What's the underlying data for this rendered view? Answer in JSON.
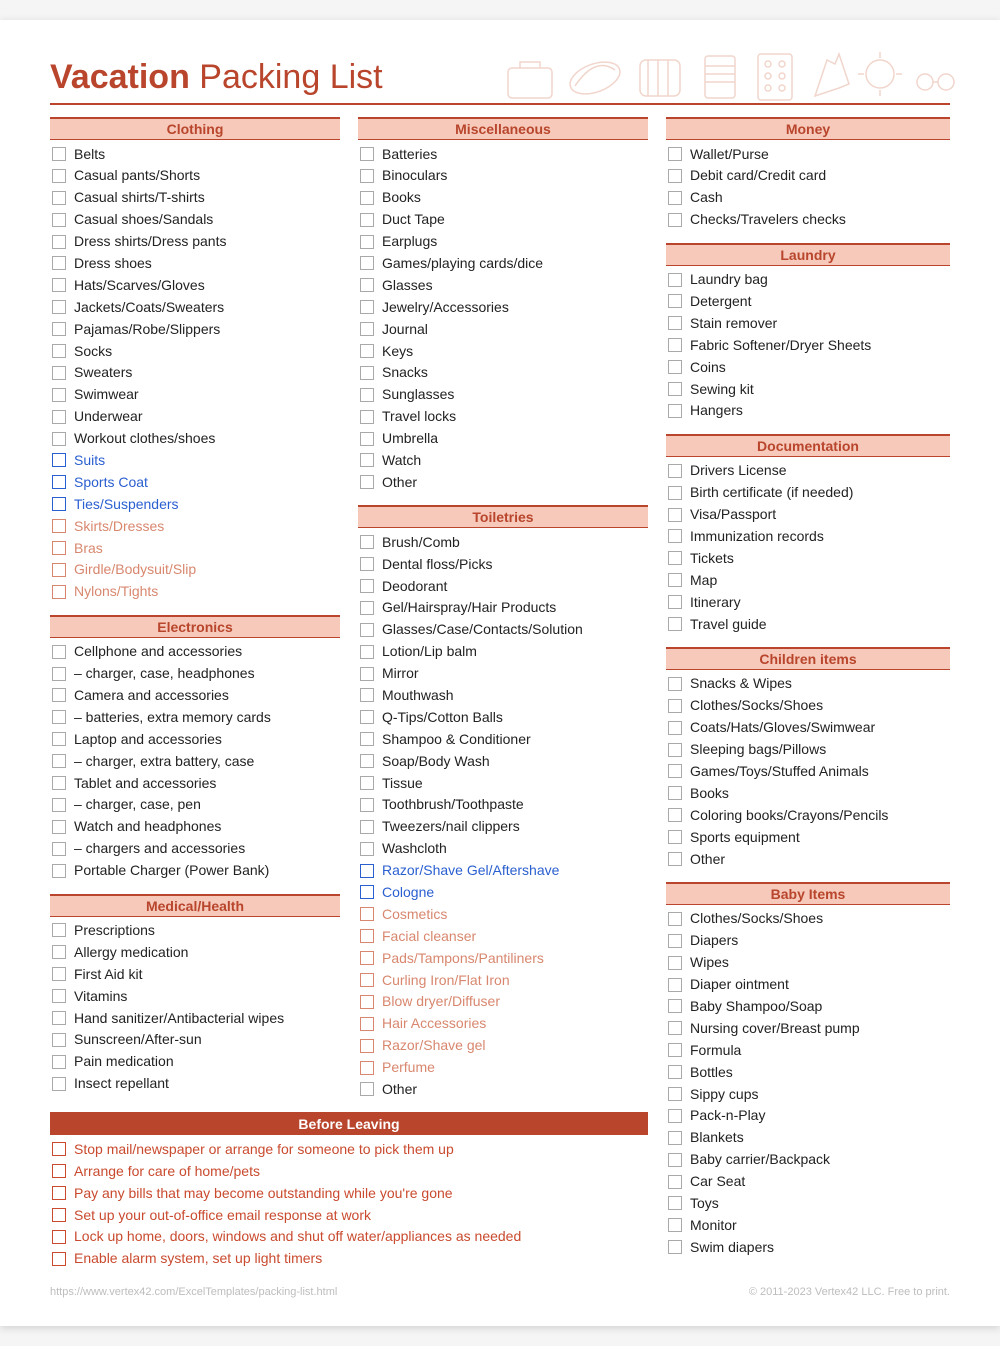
{
  "title_bold": "Vacation",
  "title_rest": " Packing List",
  "colors": {
    "accent": "#b8452c",
    "header_fill": "#f6c9ba",
    "blue": "#2a5fd0",
    "coral": "#d8876e",
    "red": "#c94a2e",
    "text": "#222222",
    "background": "#ffffff"
  },
  "footer_left": "https://www.vertex42.com/ExcelTemplates/packing-list.html",
  "footer_right": "© 2011-2023 Vertex42 LLC. Free to print.",
  "sections": {
    "clothing": {
      "title": "Clothing",
      "items": [
        {
          "label": "Belts"
        },
        {
          "label": "Casual pants/Shorts"
        },
        {
          "label": "Casual shirts/T-shirts"
        },
        {
          "label": "Casual shoes/Sandals"
        },
        {
          "label": "Dress shirts/Dress pants"
        },
        {
          "label": "Dress shoes"
        },
        {
          "label": "Hats/Scarves/Gloves"
        },
        {
          "label": "Jackets/Coats/Sweaters"
        },
        {
          "label": "Pajamas/Robe/Slippers"
        },
        {
          "label": "Socks"
        },
        {
          "label": "Sweaters"
        },
        {
          "label": "Swimwear"
        },
        {
          "label": "Underwear"
        },
        {
          "label": "Workout clothes/shoes"
        },
        {
          "label": "Suits",
          "style": "blue"
        },
        {
          "label": "Sports Coat",
          "style": "blue"
        },
        {
          "label": "Ties/Suspenders",
          "style": "blue"
        },
        {
          "label": "Skirts/Dresses",
          "style": "coral"
        },
        {
          "label": "Bras",
          "style": "coral"
        },
        {
          "label": "Girdle/Bodysuit/Slip",
          "style": "coral"
        },
        {
          "label": "Nylons/Tights",
          "style": "coral"
        }
      ]
    },
    "electronics": {
      "title": "Electronics",
      "items": [
        {
          "label": "Cellphone and accessories"
        },
        {
          "label": "  – charger, case, headphones"
        },
        {
          "label": "Camera and accessories"
        },
        {
          "label": "  – batteries, extra memory cards"
        },
        {
          "label": "Laptop and accessories"
        },
        {
          "label": "  – charger, extra battery, case"
        },
        {
          "label": "Tablet and accessories"
        },
        {
          "label": "  – charger, case, pen"
        },
        {
          "label": "Watch and headphones"
        },
        {
          "label": "  – chargers and accessories"
        },
        {
          "label": "Portable Charger (Power Bank)"
        }
      ]
    },
    "medical": {
      "title": "Medical/Health",
      "items": [
        {
          "label": "Prescriptions"
        },
        {
          "label": "Allergy medication"
        },
        {
          "label": "First Aid kit"
        },
        {
          "label": "Vitamins"
        },
        {
          "label": "Hand sanitizer/Antibacterial wipes"
        },
        {
          "label": "Sunscreen/After-sun"
        },
        {
          "label": "Pain medication"
        },
        {
          "label": "Insect repellant"
        }
      ]
    },
    "misc": {
      "title": "Miscellaneous",
      "items": [
        {
          "label": "Batteries"
        },
        {
          "label": "Binoculars"
        },
        {
          "label": "Books"
        },
        {
          "label": "Duct Tape"
        },
        {
          "label": "Earplugs"
        },
        {
          "label": "Games/playing cards/dice"
        },
        {
          "label": "Glasses"
        },
        {
          "label": "Jewelry/Accessories"
        },
        {
          "label": "Journal"
        },
        {
          "label": "Keys"
        },
        {
          "label": "Snacks"
        },
        {
          "label": "Sunglasses"
        },
        {
          "label": "Travel locks"
        },
        {
          "label": "Umbrella"
        },
        {
          "label": "Watch"
        },
        {
          "label": "Other"
        }
      ]
    },
    "toiletries": {
      "title": "Toiletries",
      "items": [
        {
          "label": "Brush/Comb"
        },
        {
          "label": "Dental floss/Picks"
        },
        {
          "label": "Deodorant"
        },
        {
          "label": "Gel/Hairspray/Hair Products"
        },
        {
          "label": "Glasses/Case/Contacts/Solution"
        },
        {
          "label": "Lotion/Lip balm"
        },
        {
          "label": "Mirror"
        },
        {
          "label": "Mouthwash"
        },
        {
          "label": "Q-Tips/Cotton Balls"
        },
        {
          "label": "Shampoo & Conditioner"
        },
        {
          "label": "Soap/Body Wash"
        },
        {
          "label": "Tissue"
        },
        {
          "label": "Toothbrush/Toothpaste"
        },
        {
          "label": "Tweezers/nail clippers"
        },
        {
          "label": "Washcloth"
        },
        {
          "label": "Razor/Shave Gel/Aftershave",
          "style": "blue"
        },
        {
          "label": "Cologne",
          "style": "blue"
        },
        {
          "label": "Cosmetics",
          "style": "coral"
        },
        {
          "label": "Facial cleanser",
          "style": "coral"
        },
        {
          "label": "Pads/Tampons/Pantiliners",
          "style": "coral"
        },
        {
          "label": "Curling Iron/Flat Iron",
          "style": "coral"
        },
        {
          "label": "Blow dryer/Diffuser",
          "style": "coral"
        },
        {
          "label": "Hair Accessories",
          "style": "coral"
        },
        {
          "label": "Razor/Shave gel",
          "style": "coral"
        },
        {
          "label": "Perfume",
          "style": "coral"
        },
        {
          "label": "Other"
        }
      ]
    },
    "money": {
      "title": "Money",
      "items": [
        {
          "label": "Wallet/Purse"
        },
        {
          "label": "Debit card/Credit card"
        },
        {
          "label": "Cash"
        },
        {
          "label": "Checks/Travelers checks"
        }
      ]
    },
    "laundry": {
      "title": "Laundry",
      "items": [
        {
          "label": "Laundry bag"
        },
        {
          "label": "Detergent"
        },
        {
          "label": "Stain remover"
        },
        {
          "label": "Fabric Softener/Dryer Sheets"
        },
        {
          "label": "Coins"
        },
        {
          "label": "Sewing kit"
        },
        {
          "label": "Hangers"
        }
      ]
    },
    "documentation": {
      "title": "Documentation",
      "items": [
        {
          "label": "Drivers License"
        },
        {
          "label": "Birth certificate (if needed)"
        },
        {
          "label": "Visa/Passport"
        },
        {
          "label": "Immunization records"
        },
        {
          "label": "Tickets"
        },
        {
          "label": "Map"
        },
        {
          "label": "Itinerary"
        },
        {
          "label": "Travel guide"
        }
      ]
    },
    "children": {
      "title": "Children items",
      "items": [
        {
          "label": "Snacks & Wipes"
        },
        {
          "label": "Clothes/Socks/Shoes"
        },
        {
          "label": "Coats/Hats/Gloves/Swimwear"
        },
        {
          "label": "Sleeping bags/Pillows"
        },
        {
          "label": "Games/Toys/Stuffed Animals"
        },
        {
          "label": "Books"
        },
        {
          "label": "Coloring books/Crayons/Pencils"
        },
        {
          "label": "Sports equipment"
        },
        {
          "label": "Other"
        }
      ]
    },
    "baby": {
      "title": "Baby Items",
      "items": [
        {
          "label": "Clothes/Socks/Shoes"
        },
        {
          "label": "Diapers"
        },
        {
          "label": "Wipes"
        },
        {
          "label": "Diaper ointment"
        },
        {
          "label": "Baby Shampoo/Soap"
        },
        {
          "label": "Nursing cover/Breast pump"
        },
        {
          "label": "Formula"
        },
        {
          "label": "Bottles"
        },
        {
          "label": "Sippy cups"
        },
        {
          "label": "Pack-n-Play"
        },
        {
          "label": "Blankets"
        },
        {
          "label": "Baby carrier/Backpack"
        },
        {
          "label": "Car Seat"
        },
        {
          "label": "Toys"
        },
        {
          "label": "Monitor"
        },
        {
          "label": "Swim diapers"
        }
      ]
    },
    "before": {
      "title": "Before Leaving",
      "items": [
        {
          "label": "Stop mail/newspaper or arrange for someone to pick them up",
          "style": "red"
        },
        {
          "label": "Arrange for care of home/pets",
          "style": "red"
        },
        {
          "label": "Pay any bills that may become outstanding while you're gone",
          "style": "red"
        },
        {
          "label": "Set up your out-of-office email response at work",
          "style": "red"
        },
        {
          "label": "Lock up home, doors, windows and shut off water/appliances as needed",
          "style": "red"
        },
        {
          "label": "Enable alarm system, set up light timers",
          "style": "red"
        }
      ]
    }
  }
}
